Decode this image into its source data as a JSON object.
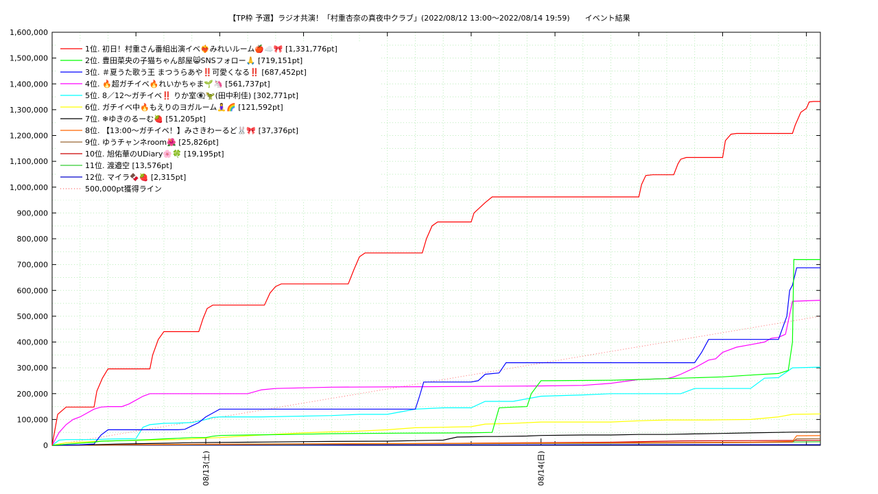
{
  "chart_data": {
    "type": "line",
    "title": "【TP枠 予選】ラジオ共演！「村重杏奈の真夜中クラブ」(2022/08/12 13:00～2022/08/14 19:59)　　イベント結果",
    "xlabel": "",
    "ylabel": "",
    "ylim": [
      0,
      1600000
    ],
    "y_ticks": [
      "0",
      "100,000",
      "200,000",
      "300,000",
      "400,000",
      "500,000",
      "600,000",
      "700,000",
      "800,000",
      "900,000",
      "1,000,000",
      "1,100,000",
      "1,200,000",
      "1,300,000",
      "1,400,000",
      "1,500,000",
      "1,600,000"
    ],
    "xlim": [
      0,
      55
    ],
    "x_unit": "hours from 2022/08/12 13:00",
    "x_tick_labels": [
      {
        "x": 11,
        "label": "08/13(土)"
      },
      {
        "x": 35,
        "label": "08/14(日)"
      }
    ],
    "grid": true,
    "legend_position": "top-left",
    "series": [
      {
        "name": "1位. 初日！村重さん番組出演イベ❤️‍🔥みれいルーム🍎☁️🎀 [1,331,776pt]",
        "color": "#ff0000",
        "x": [
          0,
          0.4,
          1,
          1.5,
          2,
          2.5,
          3,
          3.2,
          3.6,
          4,
          4.5,
          5,
          5.5,
          6,
          6.5,
          7,
          7.2,
          7.6,
          8,
          8.5,
          9,
          10.5,
          10.8,
          11.1,
          11.5,
          12.5,
          15.2,
          15.6,
          16,
          16.4,
          17,
          18.5,
          21.2,
          21.6,
          22,
          22.4,
          23,
          24.5,
          26.5,
          26.8,
          27.2,
          27.6,
          28,
          29,
          30,
          30.2,
          31,
          31.5,
          33,
          34,
          42,
          42.2,
          42.5,
          43,
          44.5,
          44.8,
          45,
          45.4,
          46,
          48,
          48.2,
          48.6,
          49,
          49.5,
          52,
          53,
          53.2,
          53.6,
          54,
          54.2,
          54.5,
          55
        ],
        "y": [
          0,
          120000,
          148000,
          148000,
          148000,
          148000,
          148000,
          210000,
          260000,
          296000,
          296000,
          296000,
          296000,
          296000,
          296000,
          296000,
          350000,
          410000,
          440000,
          440000,
          440000,
          440000,
          490000,
          530000,
          543000,
          543000,
          543000,
          590000,
          615000,
          625000,
          625000,
          625000,
          625000,
          680000,
          730000,
          745000,
          745000,
          745000,
          745000,
          800000,
          850000,
          865000,
          865000,
          865000,
          865000,
          900000,
          940000,
          962000,
          962000,
          962000,
          962000,
          1010000,
          1045000,
          1048000,
          1048000,
          1090000,
          1108000,
          1115000,
          1115000,
          1115000,
          1180000,
          1205000,
          1208000,
          1208000,
          1208000,
          1208000,
          1240000,
          1290000,
          1305000,
          1330000,
          1331776,
          1331776
        ]
      },
      {
        "name": "2位. 豊田菜央の子猫ちゃん部屋😸SNSフォロー🙏 [719,151pt]",
        "color": "#00ff00",
        "x": [
          0,
          3,
          3.5,
          5,
          6,
          7,
          8,
          9,
          10,
          11,
          11.5,
          12,
          14,
          17,
          20,
          25,
          30,
          31.5,
          32,
          33,
          34,
          34.3,
          35,
          35.5,
          40,
          42,
          45,
          48,
          50,
          51,
          52,
          52.7,
          53,
          53.1,
          53.2,
          55
        ],
        "y": [
          0,
          12000,
          16000,
          18000,
          20000,
          22000,
          25000,
          27000,
          30000,
          30000,
          35000,
          38000,
          40000,
          42000,
          45000,
          47000,
          48000,
          50000,
          145000,
          148000,
          150000,
          200000,
          250000,
          250000,
          252000,
          255000,
          260000,
          265000,
          272000,
          275000,
          278000,
          290000,
          400000,
          720000,
          719151,
          719151
        ]
      },
      {
        "name": "3位. ＃夏うた歌う王 まつうらあや‼️可愛くなる‼️ [687,452pt]",
        "color": "#0000ff",
        "x": [
          0,
          2,
          3,
          3.5,
          4,
          5,
          6,
          8,
          9,
          9.5,
          10,
          10.5,
          11,
          11.5,
          12,
          20,
          26,
          26.3,
          26.6,
          30,
          30.5,
          31,
          32,
          32.5,
          40,
          45,
          46,
          46.5,
          47,
          48,
          51,
          52,
          52.6,
          52.8,
          53,
          53.3,
          55
        ],
        "y": [
          0,
          2000,
          5000,
          40000,
          60000,
          60000,
          60000,
          60000,
          60000,
          62000,
          75000,
          88000,
          110000,
          125000,
          140000,
          140000,
          140000,
          190000,
          245000,
          245000,
          250000,
          275000,
          280000,
          320000,
          320000,
          320000,
          320000,
          360000,
          410000,
          410000,
          410000,
          410000,
          500000,
          600000,
          620000,
          687452,
          687452
        ]
      },
      {
        "name": "4位. 🔥超ガチイベ🔥れいかちゃま🌱🦄 [561,737pt]",
        "color": "#ff00ff",
        "x": [
          0,
          0.5,
          1,
          1.5,
          2,
          2.5,
          3,
          3.5,
          4,
          4.5,
          5,
          5.5,
          6,
          6.5,
          7,
          8,
          9,
          11,
          14,
          15,
          16,
          20,
          30,
          35,
          38,
          40,
          42,
          44,
          44.5,
          45,
          46,
          47,
          47.5,
          48,
          49,
          50,
          51,
          51.5,
          52,
          52.5,
          53,
          55
        ],
        "y": [
          0,
          50000,
          80000,
          100000,
          110000,
          125000,
          140000,
          148000,
          150000,
          150000,
          150000,
          160000,
          175000,
          190000,
          200000,
          200000,
          200000,
          200000,
          200000,
          215000,
          220000,
          225000,
          228000,
          230000,
          232000,
          240000,
          255000,
          258000,
          265000,
          275000,
          300000,
          330000,
          335000,
          360000,
          380000,
          390000,
          400000,
          415000,
          418000,
          430000,
          558000,
          561737
        ]
      },
      {
        "name": "5位. 8／12～ガチイベ‼️ りか室👁️‍🗨️🦖(田中利佳) [302,771pt]",
        "color": "#00ffff",
        "x": [
          0,
          0.5,
          1,
          2,
          3,
          4,
          5,
          6,
          6.5,
          7,
          8,
          9,
          10,
          11,
          11.5,
          12,
          15,
          20,
          22,
          24,
          25,
          26,
          28,
          30,
          31,
          33,
          35,
          38,
          40,
          44,
          45,
          46,
          50,
          51,
          52,
          53,
          55
        ],
        "y": [
          0,
          20000,
          22000,
          22000,
          22000,
          24000,
          25000,
          26000,
          70000,
          80000,
          85000,
          86000,
          88000,
          100000,
          108000,
          110000,
          110000,
          115000,
          120000,
          120000,
          130000,
          140000,
          145000,
          145000,
          170000,
          170000,
          190000,
          195000,
          200000,
          200000,
          200000,
          220000,
          220000,
          260000,
          262000,
          300000,
          302771
        ]
      },
      {
        "name": "6位. ガチイベ中🔥もえりのヨガルーム🧘‍♀️🌈 [121,592pt]",
        "color": "#ffff00",
        "x": [
          0,
          1,
          2,
          3,
          5,
          7,
          9,
          10,
          12,
          15,
          18,
          20,
          22,
          24,
          26,
          28,
          30,
          31,
          33,
          35,
          40,
          42,
          44,
          47,
          48,
          50,
          51,
          52,
          53,
          55
        ],
        "y": [
          0,
          10000,
          12000,
          15000,
          18000,
          20000,
          22000,
          25000,
          30000,
          40000,
          48000,
          52000,
          55000,
          60000,
          68000,
          70000,
          72000,
          82000,
          85000,
          90000,
          90000,
          95000,
          98000,
          98000,
          99000,
          100000,
          105000,
          110000,
          120000,
          121592
        ]
      },
      {
        "name": "7位. ❄ゆきのるーむ🍓 [51,205pt]",
        "color": "#000000",
        "x": [
          0,
          2,
          5,
          8,
          10,
          14,
          18,
          20,
          24,
          26,
          28,
          29,
          30,
          31,
          32,
          34,
          35,
          38,
          40,
          42,
          44,
          46,
          48,
          50,
          52,
          53,
          55
        ],
        "y": [
          0,
          1000,
          5000,
          8000,
          10000,
          12000,
          14000,
          15000,
          16000,
          18000,
          20000,
          32000,
          33000,
          34000,
          34000,
          36000,
          38000,
          40000,
          40000,
          42000,
          42000,
          44000,
          46000,
          48000,
          50000,
          51000,
          51205
        ]
      },
      {
        "name": "8位. 【13:00～ガチイベ！】みさきわーるど🐰🎀 [37,376pt]",
        "color": "#ff6600",
        "x": [
          0,
          5,
          10,
          20,
          30,
          40,
          50,
          53,
          53.3,
          55
        ],
        "y": [
          0,
          2000,
          4000,
          6000,
          8000,
          10000,
          12000,
          15000,
          37000,
          37376
        ]
      },
      {
        "name": "9位. ゆうチャンネroom🌺 [25,826pt]",
        "color": "#996633",
        "x": [
          0,
          5,
          10,
          20,
          30,
          40,
          50,
          53,
          53.3,
          55
        ],
        "y": [
          0,
          1500,
          3000,
          4500,
          6000,
          8000,
          10000,
          12000,
          25000,
          25826
        ]
      },
      {
        "name": "10位. 旭佑華のUDiary🌸🍀 [19,195pt]",
        "color": "#cc0000",
        "x": [
          0,
          10,
          20,
          25,
          30,
          35,
          40,
          43,
          45,
          50,
          55
        ],
        "y": [
          0,
          3000,
          5000,
          6000,
          8000,
          10000,
          12000,
          15000,
          17000,
          18000,
          19195
        ]
      },
      {
        "name": "11位. 渡邉空 [13,576pt]",
        "color": "#33cc33",
        "x": [
          0,
          10,
          20,
          30,
          40,
          50,
          55
        ],
        "y": [
          0,
          2000,
          4000,
          6000,
          8000,
          11000,
          13576
        ]
      },
      {
        "name": "12位. マイラ🍫🍓 [2,315pt]",
        "color": "#0000cc",
        "x": [
          0,
          20,
          40,
          55
        ],
        "y": [
          0,
          1000,
          2000,
          2315
        ]
      },
      {
        "name": "500,000pt獲得ライン",
        "color": "#ff6666",
        "dashed": true,
        "x": [
          0,
          55
        ],
        "y": [
          0,
          500000
        ]
      }
    ]
  }
}
